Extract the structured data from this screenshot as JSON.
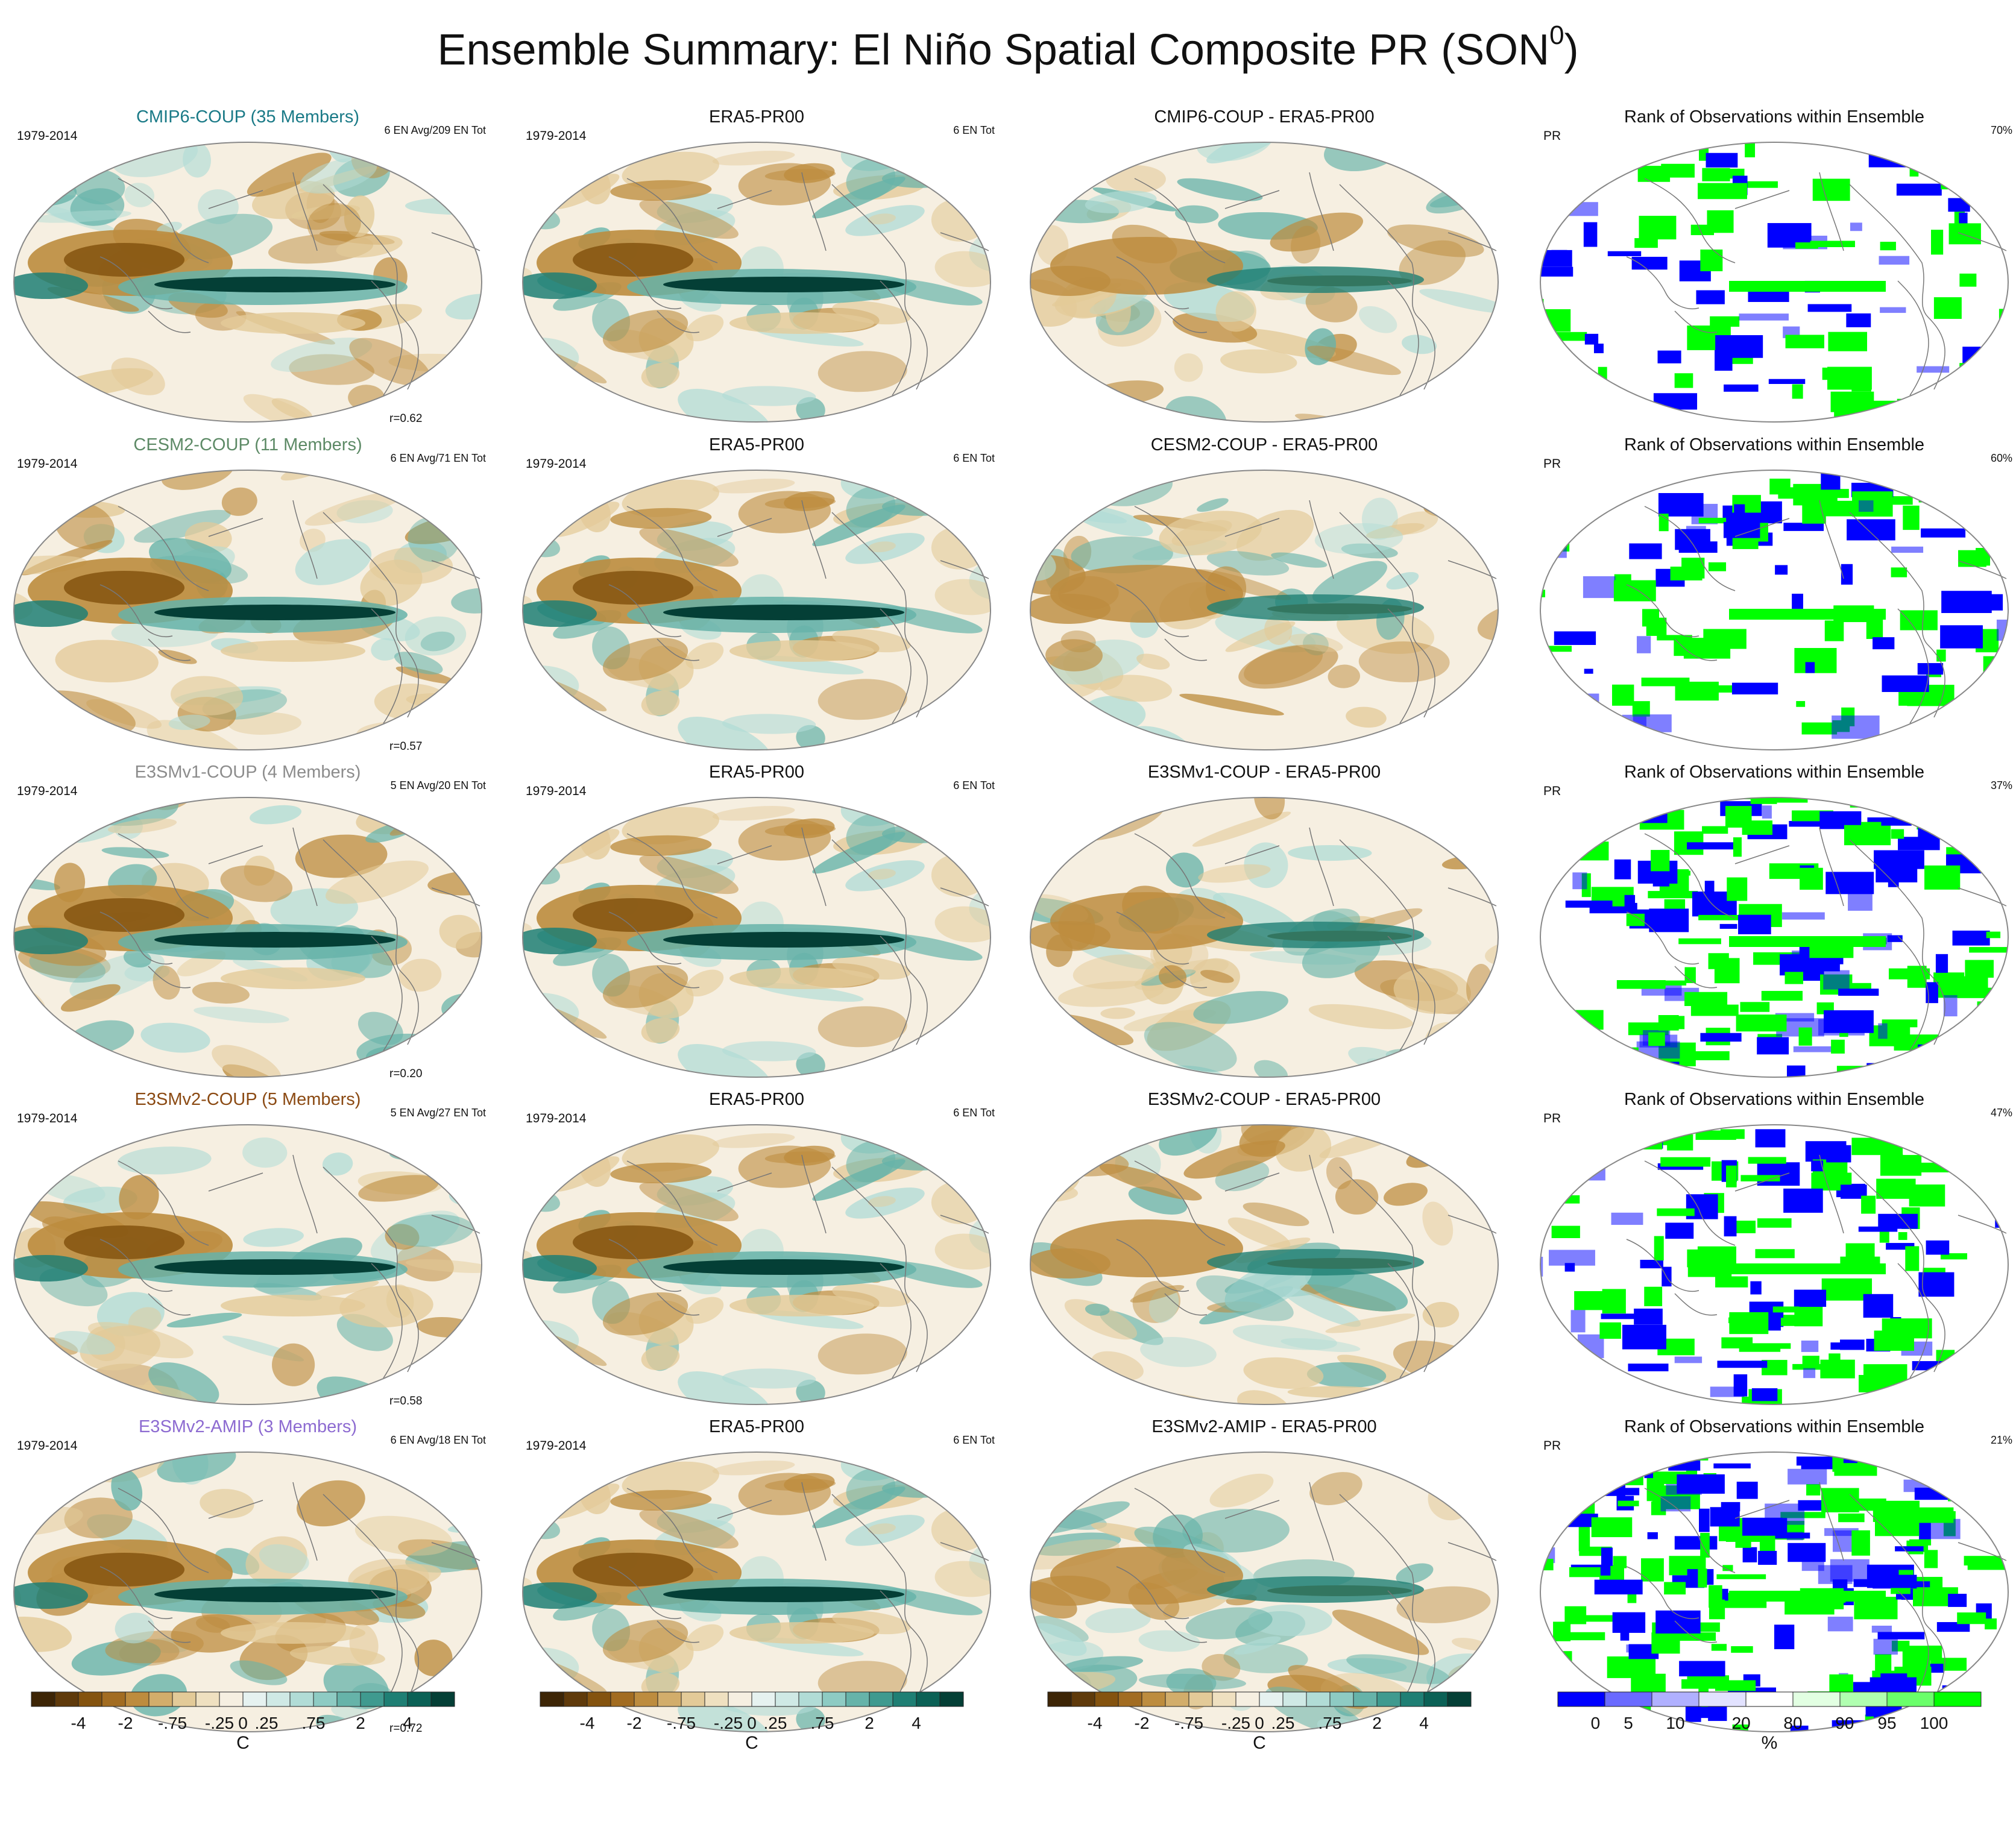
{
  "title_main": "Ensemble Summary: El Niño Spatial Composite PR (SON",
  "title_sup": "0",
  "title_end": ")",
  "chart_data": {
    "type": "heatmap",
    "description_grid": "5 ensembles x 4 panel types (ensemble composite, observations, difference, rank)",
    "period": "1979-2014",
    "rows": [
      {
        "model": {
          "title": "CMIP6-COUP (35 Members)",
          "color": "#1a7a87",
          "period": "1979-2014",
          "count": "6 EN Avg/209 EN Tot",
          "r": "r=0.62"
        },
        "obs": {
          "title": "ERA5-PR00",
          "period": "1979-2014",
          "count": "6 EN Tot"
        },
        "diff": {
          "title": "CMIP6-COUP - ERA5-PR00"
        },
        "rank": {
          "title": "Rank of Observations within Ensemble",
          "var": "PR",
          "pct": "70%"
        }
      },
      {
        "model": {
          "title": "CESM2-COUP (11 Members)",
          "color": "#5d8a66",
          "period": "1979-2014",
          "count": "6 EN Avg/71 EN Tot",
          "r": "r=0.57"
        },
        "obs": {
          "title": "ERA5-PR00",
          "period": "1979-2014",
          "count": "6 EN Tot"
        },
        "diff": {
          "title": "CESM2-COUP - ERA5-PR00"
        },
        "rank": {
          "title": "Rank of Observations within Ensemble",
          "var": "PR",
          "pct": "60%"
        }
      },
      {
        "model": {
          "title": "E3SMv1-COUP (4 Members)",
          "color": "#8c8c8c",
          "period": "1979-2014",
          "count": "5 EN Avg/20 EN Tot",
          "r": "r=0.20"
        },
        "obs": {
          "title": "ERA5-PR00",
          "period": "1979-2014",
          "count": "6 EN Tot"
        },
        "diff": {
          "title": "E3SMv1-COUP - ERA5-PR00"
        },
        "rank": {
          "title": "Rank of Observations within Ensemble",
          "var": "PR",
          "pct": "37%"
        }
      },
      {
        "model": {
          "title": "E3SMv2-COUP (5 Members)",
          "color": "#8b4a13",
          "period": "1979-2014",
          "count": "5 EN Avg/27 EN Tot",
          "r": "r=0.58"
        },
        "obs": {
          "title": "ERA5-PR00",
          "period": "1979-2014",
          "count": "6 EN Tot"
        },
        "diff": {
          "title": "E3SMv2-COUP - ERA5-PR00"
        },
        "rank": {
          "title": "Rank of Observations within Ensemble",
          "var": "PR",
          "pct": "47%"
        }
      },
      {
        "model": {
          "title": "E3SMv2-AMIP (3 Members)",
          "color": "#8d6bd1",
          "period": "1979-2014",
          "count": "6 EN Avg/18 EN Tot",
          "r": "r=0.72"
        },
        "obs": {
          "title": "ERA5-PR00",
          "period": "1979-2014",
          "count": "6 EN Tot"
        },
        "diff": {
          "title": "E3SMv2-AMIP - ERA5-PR00"
        },
        "rank": {
          "title": "Rank of Observations within Ensemble",
          "var": "PR",
          "pct": "21%"
        }
      }
    ],
    "colorbar_anomaly": {
      "unit": "C",
      "tick_labels": [
        "-4",
        "-2",
        "-.75",
        "-.25",
        "0",
        ".25",
        ".75",
        "2",
        "4"
      ],
      "colors": [
        "#3d2506",
        "#5f3a0b",
        "#84530f",
        "#a26c21",
        "#bd8c3e",
        "#d2ad6b",
        "#e3ca98",
        "#efe0c0",
        "#f6efe1",
        "#e6f2f0",
        "#cfe9e5",
        "#b1dcd6",
        "#8ecbc3",
        "#66b3a9",
        "#3f9a8f",
        "#1f7f74",
        "#0b6156",
        "#043f36"
      ]
    },
    "colorbar_rank": {
      "unit": "%",
      "tick_labels": [
        "0",
        "5",
        "10",
        "20",
        "80",
        "90",
        "95",
        "100"
      ],
      "colors": [
        "#0000ff",
        "#6a6aff",
        "#b0b0ff",
        "#e2e2ff",
        "#ffffff",
        "#e2ffe2",
        "#b0ffb0",
        "#6aff6a",
        "#00ff00"
      ]
    }
  }
}
